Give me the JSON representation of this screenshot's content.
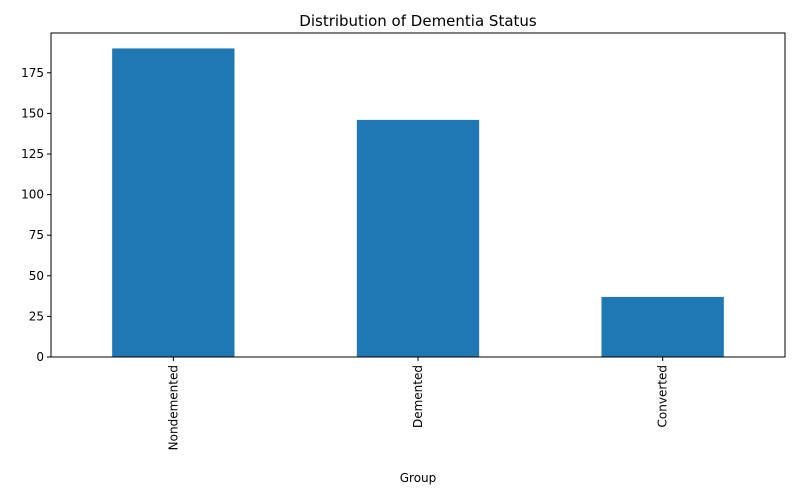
{
  "chart_data": {
    "type": "bar",
    "title": "Distribution of Dementia Status",
    "xlabel": "Group",
    "ylabel": "",
    "categories": [
      "Nondemented",
      "Demented",
      "Converted"
    ],
    "values": [
      190,
      146,
      37
    ],
    "ylim": [
      0,
      199.5
    ],
    "yticks": [
      0,
      25,
      50,
      75,
      100,
      125,
      150,
      175
    ],
    "bar_color": "#1f77b4",
    "grid": false,
    "legend": "none"
  }
}
